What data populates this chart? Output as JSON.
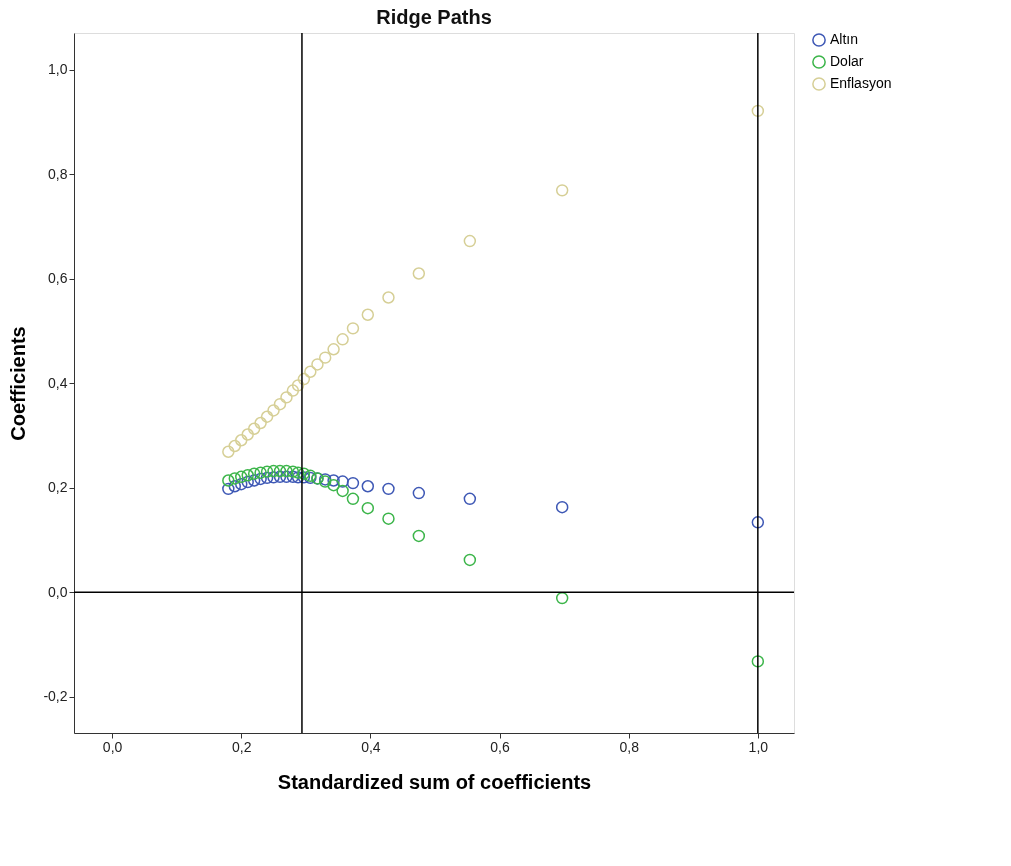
{
  "chart_data": {
    "type": "scatter",
    "title": "Ridge Paths",
    "xlabel": "Standardized sum of coefficients",
    "ylabel": "Coefficients",
    "x": [
      1.0,
      0.697,
      0.554,
      0.475,
      0.428,
      0.396,
      0.373,
      0.357,
      0.343,
      0.33,
      0.318,
      0.307,
      0.297,
      0.288,
      0.28,
      0.27,
      0.26,
      0.25,
      0.24,
      0.23,
      0.22,
      0.21,
      0.2,
      0.19,
      0.18
    ],
    "series": [
      {
        "name": "Altın",
        "color": "#3e58b5",
        "values": [
          0.134,
          0.163,
          0.179,
          0.19,
          0.198,
          0.203,
          0.209,
          0.212,
          0.214,
          0.216,
          0.218,
          0.219,
          0.22,
          0.22,
          0.221,
          0.221,
          0.221,
          0.22,
          0.219,
          0.217,
          0.214,
          0.211,
          0.207,
          0.203,
          0.198
        ]
      },
      {
        "name": "Dolar",
        "color": "#3cb54a",
        "values": [
          -0.132,
          -0.011,
          0.062,
          0.108,
          0.141,
          0.161,
          0.179,
          0.194,
          0.205,
          0.212,
          0.218,
          0.223,
          0.227,
          0.229,
          0.231,
          0.232,
          0.232,
          0.232,
          0.231,
          0.229,
          0.227,
          0.224,
          0.221,
          0.218,
          0.214
        ]
      },
      {
        "name": "Enflasyon",
        "color": "#d6cf96",
        "values": [
          0.921,
          0.769,
          0.672,
          0.61,
          0.564,
          0.531,
          0.505,
          0.484,
          0.465,
          0.449,
          0.436,
          0.422,
          0.408,
          0.396,
          0.386,
          0.373,
          0.36,
          0.348,
          0.336,
          0.324,
          0.313,
          0.302,
          0.291,
          0.28,
          0.269
        ]
      }
    ],
    "xlim": [
      -0.059,
      1.056
    ],
    "ylim": [
      -0.269,
      1.07
    ],
    "xticks": [
      {
        "value": 0,
        "label": "0,0"
      },
      {
        "value": 0.2,
        "label": "0,2"
      },
      {
        "value": 0.4,
        "label": "0,4"
      },
      {
        "value": 0.6,
        "label": "0,6"
      },
      {
        "value": 0.8,
        "label": "0,8"
      },
      {
        "value": 1.0,
        "label": "1,0"
      }
    ],
    "yticks": [
      {
        "value": -0.2,
        "label": "-0,2"
      },
      {
        "value": 0,
        "label": "0,0"
      },
      {
        "value": 0.2,
        "label": "0,2"
      },
      {
        "value": 0.4,
        "label": "0,4"
      },
      {
        "value": 0.6,
        "label": "0,6"
      },
      {
        "value": 0.8,
        "label": "0,8"
      },
      {
        "value": 1.0,
        "label": "1,0"
      }
    ],
    "ref_lines": [
      {
        "axis": "x",
        "value": 0.294,
        "color": "#000000"
      },
      {
        "axis": "x",
        "value": 1.0,
        "color": "#000000"
      },
      {
        "axis": "y",
        "value": 0,
        "color": "#000000"
      }
    ],
    "grid": false,
    "legend": "top right",
    "marker": "circle"
  }
}
